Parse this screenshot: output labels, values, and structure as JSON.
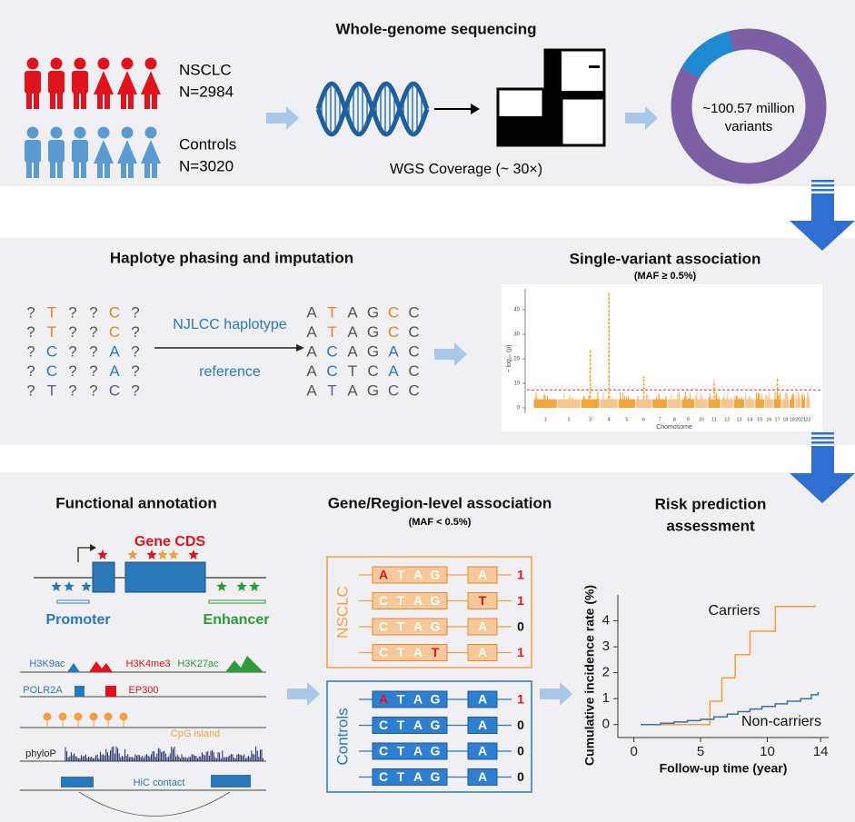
{
  "wgs": {
    "title": "Whole-genome sequencing",
    "cases": {
      "label": "NSCLC",
      "n": "N=2984"
    },
    "controls": {
      "label": "Controls",
      "n": "N=3020"
    },
    "coverage": "WGS Coverage (~ 30×)",
    "variants": [
      "~100.57 million",
      "variants"
    ]
  },
  "phasing": {
    "title": "Haplotye phasing and imputation",
    "input": [
      [
        "?",
        "T",
        "?",
        "?",
        "C",
        "?"
      ],
      [
        "?",
        "T",
        "?",
        "?",
        "C",
        "?"
      ],
      [
        "?",
        "C",
        "?",
        "?",
        "A",
        "?"
      ],
      [
        "?",
        "C",
        "?",
        "?",
        "A",
        "?"
      ],
      [
        "?",
        "T",
        "?",
        "?",
        "C",
        "?"
      ]
    ],
    "reference": [
      "NJLCC haplotype",
      "reference"
    ],
    "output": [
      [
        "A",
        "T",
        "A",
        "G",
        "C",
        "C"
      ],
      [
        "A",
        "T",
        "A",
        "G",
        "C",
        "C"
      ],
      [
        "A",
        "C",
        "A",
        "G",
        "A",
        "C"
      ],
      [
        "A",
        "C",
        "T",
        "C",
        "A",
        "C"
      ],
      [
        "A",
        "T",
        "A",
        "G",
        "C",
        "C"
      ]
    ],
    "row_colors": [
      "#e8822a",
      "#e8822a",
      "#2a78b8",
      "#2a78b8",
      "#6a4fa0"
    ],
    "highlight_columns": [
      1,
      4
    ]
  },
  "single_variant": {
    "title": "Single-variant association",
    "subtitle": "(MAF ≥ 0.5%)",
    "ylabel": "− log₁₀ (p)",
    "xlabel": "Chomosome",
    "ylim": [
      -2,
      48
    ],
    "yticks": [
      0,
      10,
      20,
      30,
      40
    ],
    "chromosomes": [
      "1",
      "2",
      "3",
      "4",
      "5",
      "6",
      "7",
      "8",
      "9",
      "10",
      "11",
      "12",
      "13",
      "14",
      "15",
      "16",
      "17",
      "18",
      "19",
      "20",
      "21",
      "22"
    ],
    "peaks": [
      {
        "chromosome": "3",
        "value": 24
      },
      {
        "chromosome": "4",
        "value": 47
      },
      {
        "chromosome": "6",
        "value": 13
      },
      {
        "chromosome": "11",
        "value": 11
      },
      {
        "chromosome": "17",
        "value": 12
      }
    ],
    "significance_line": 7.3
  },
  "annotation": {
    "title": "Functional annotation",
    "gene": "Gene CDS",
    "promoter": "Promoter",
    "enhancer": "Enhancer",
    "tracks": {
      "h3k9ac": "H3K9ac",
      "h3k4me3": "H3K4me3",
      "h3k27ac": "H3K27ac",
      "polr2a": "POLR2A",
      "ep300": "EP300",
      "cpg": "CpG island",
      "phylop": "phyloP",
      "hic": "HiC contact"
    }
  },
  "gene_level": {
    "title": "Gene/Region-level association",
    "subtitle": "(MAF < 0.5%)",
    "groups": [
      {
        "label": "NSCLC",
        "rows": [
          {
            "bases": [
              "A",
              "T",
              "A",
              "G"
            ],
            "last": "A",
            "count": 1,
            "highlight": 0
          },
          {
            "bases": [
              "C",
              "T",
              "A",
              "G"
            ],
            "last": "T",
            "count": 1,
            "highlight": 4
          },
          {
            "bases": [
              "C",
              "T",
              "A",
              "G"
            ],
            "last": "A",
            "count": 0,
            "highlight": null
          },
          {
            "bases": [
              "C",
              "T",
              "A",
              "T"
            ],
            "last": "A",
            "count": 1,
            "highlight": 3
          }
        ]
      },
      {
        "label": "Controls",
        "rows": [
          {
            "bases": [
              "A",
              "T",
              "A",
              "G"
            ],
            "last": "A",
            "count": 1,
            "highlight": 0
          },
          {
            "bases": [
              "C",
              "T",
              "A",
              "G"
            ],
            "last": "A",
            "count": 0,
            "highlight": null
          },
          {
            "bases": [
              "C",
              "T",
              "A",
              "G"
            ],
            "last": "A",
            "count": 0,
            "highlight": null
          },
          {
            "bases": [
              "C",
              "T",
              "A",
              "G"
            ],
            "last": "A",
            "count": 0,
            "highlight": null
          }
        ]
      }
    ]
  },
  "risk": {
    "title": [
      "Risk prediction",
      "assessment"
    ],
    "chart": {
      "type": "line",
      "xlabel": "Follow-up time (year)",
      "ylabel": "Cumulative incidence rate (%)",
      "xlim": [
        -1.2,
        14.6
      ],
      "ylim": [
        -0.5,
        5
      ],
      "xticks": [
        0,
        5,
        10,
        14
      ],
      "yticks": [
        0,
        1,
        2,
        3,
        4
      ],
      "series": [
        {
          "name": "Carriers",
          "color": "#f0a040",
          "x": [
            0.5,
            5.7,
            6.6,
            7.6,
            8.7,
            10.6,
            13.6
          ],
          "values": [
            0,
            0.9,
            1.8,
            2.7,
            3.6,
            4.55,
            4.6
          ]
        },
        {
          "name": "Non-carriers",
          "color": "#3a6ea8",
          "x": [
            0.5,
            2,
            3,
            4,
            5,
            6,
            7,
            7.8,
            8.7,
            9.6,
            10.6,
            11.5,
            12.5,
            13.3,
            13.8
          ],
          "values": [
            0,
            0.05,
            0.1,
            0.15,
            0.2,
            0.3,
            0.4,
            0.5,
            0.6,
            0.7,
            0.8,
            0.9,
            1.0,
            1.15,
            1.25
          ]
        }
      ]
    }
  }
}
